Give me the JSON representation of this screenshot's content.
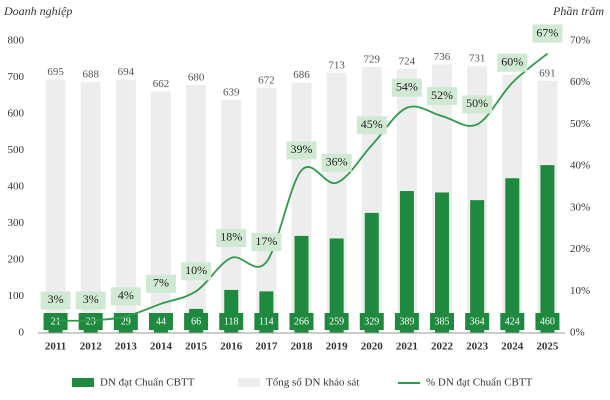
{
  "chart_data": {
    "type": "bar-line",
    "y_label": "Doanh nghiệp",
    "y2_label": "Phần trăm",
    "categories": [
      "2011",
      "2012",
      "2013",
      "2014",
      "2015",
      "2016",
      "2017",
      "2018",
      "2019",
      "2020",
      "2021",
      "2022",
      "2023",
      "2024",
      "2025"
    ],
    "series": [
      {
        "name": "DN đạt Chuẩn CBTT",
        "type": "bar",
        "color": "#1f8a3f",
        "values": [
          21,
          23,
          29,
          44,
          66,
          118,
          114,
          266,
          259,
          329,
          389,
          385,
          364,
          424,
          460
        ]
      },
      {
        "name": "Tổng số DN khảo sát",
        "type": "bar",
        "color": "#ededed",
        "values": [
          695,
          688,
          694,
          662,
          680,
          639,
          672,
          686,
          713,
          729,
          724,
          736,
          731,
          708,
          691
        ]
      },
      {
        "name": "% DN đạt Chuẩn CBTT",
        "type": "line",
        "axis": "y2",
        "color": "#2e9a4c",
        "values": [
          3,
          3,
          4,
          7,
          10,
          18,
          17,
          39,
          36,
          45,
          54,
          52,
          50,
          60,
          67
        ],
        "value_labels": [
          "3%",
          "3%",
          "4%",
          "7%",
          "10%",
          "18%",
          "17%",
          "39%",
          "36%",
          "45%",
          "54%",
          "52%",
          "50%",
          "60%",
          "67%"
        ]
      }
    ],
    "ylim": [
      0,
      800
    ],
    "yticks": [
      0,
      100,
      200,
      300,
      400,
      500,
      600,
      700,
      800
    ],
    "y2lim": [
      0,
      70
    ],
    "y2ticks": [
      {
        "value": 0,
        "label": "0%"
      },
      {
        "value": 10,
        "label": "10%"
      },
      {
        "value": 20,
        "label": "20%"
      },
      {
        "value": 30,
        "label": "30%"
      },
      {
        "value": 40,
        "label": "40%"
      },
      {
        "value": 50,
        "label": "50%"
      },
      {
        "value": 60,
        "label": "60%"
      },
      {
        "value": 70,
        "label": "70%"
      }
    ],
    "legend": "bottom"
  }
}
